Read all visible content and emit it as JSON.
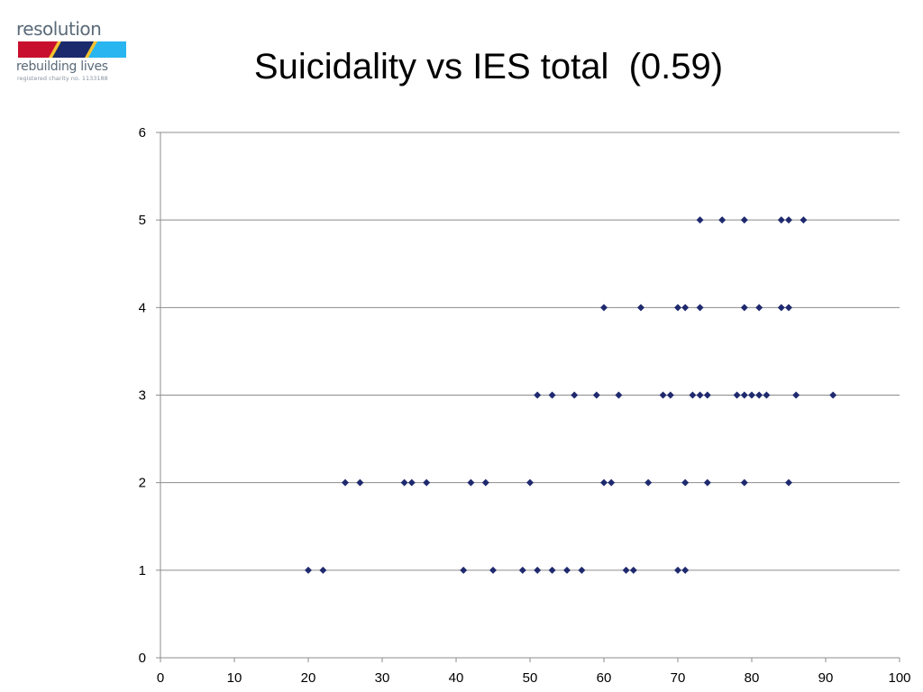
{
  "logo": {
    "name": "resolution",
    "tagline": "rebuilding lives",
    "charity": "registered charity no. 1133188",
    "colors": [
      "#c8102e",
      "#1a2a6c",
      "#29b6f0",
      "#f2c230"
    ]
  },
  "chart_data": {
    "type": "scatter",
    "title": "Suicidality vs IES total  (0.59)",
    "xlabel": "",
    "ylabel": "",
    "xlim": [
      0,
      100
    ],
    "ylim": [
      0,
      6
    ],
    "xticks": [
      0,
      10,
      20,
      30,
      40,
      50,
      60,
      70,
      80,
      90,
      100
    ],
    "yticks": [
      0,
      1,
      2,
      3,
      4,
      5,
      6
    ],
    "grid": "horizontal",
    "legend": "none",
    "marker_color": "#1f2a6e",
    "series": [
      {
        "x": [
          73,
          76,
          79,
          84,
          85,
          87,
          60,
          65,
          70,
          71,
          73,
          79,
          81,
          84,
          85,
          51,
          53,
          56,
          59,
          62,
          68,
          69,
          72,
          73,
          74,
          78,
          79,
          80,
          81,
          82,
          86,
          91,
          25,
          27,
          33,
          34,
          36,
          42,
          44,
          50,
          60,
          61,
          66,
          71,
          74,
          79,
          85,
          20,
          22,
          41,
          45,
          49,
          51,
          53,
          55,
          57,
          63,
          64,
          70,
          71
        ],
        "y": [
          5,
          5,
          5,
          5,
          5,
          5,
          4,
          4,
          4,
          4,
          4,
          4,
          4,
          4,
          4,
          3,
          3,
          3,
          3,
          3,
          3,
          3,
          3,
          3,
          3,
          3,
          3,
          3,
          3,
          3,
          3,
          3,
          2,
          2,
          2,
          2,
          2,
          2,
          2,
          2,
          2,
          2,
          2,
          2,
          2,
          2,
          2,
          1,
          1,
          1,
          1,
          1,
          1,
          1,
          1,
          1,
          1,
          1,
          1,
          1
        ]
      }
    ]
  }
}
